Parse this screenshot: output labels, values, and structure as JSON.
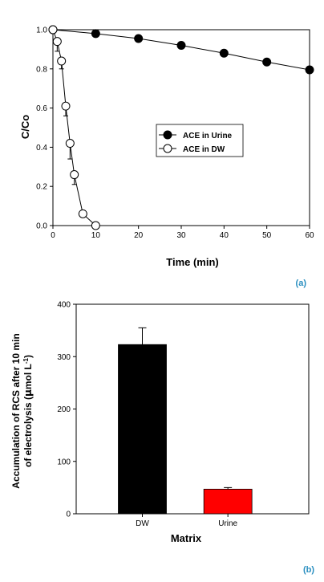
{
  "chart_data": [
    {
      "type": "line",
      "panel_label": "(a)",
      "xlabel": "Time (min)",
      "ylabel": "C/Co",
      "xlim": [
        0,
        60
      ],
      "ylim": [
        0,
        1.0
      ],
      "x_ticks": [
        "0",
        "10",
        "20",
        "30",
        "40",
        "50",
        "60"
      ],
      "y_ticks": [
        "0.0",
        "0.2",
        "0.4",
        "0.6",
        "0.8",
        "1.0"
      ],
      "grid": false,
      "legend_position": "center-right",
      "series": [
        {
          "name": "ACE in Urine",
          "marker": "filled-circle",
          "color": "#000000",
          "x": [
            0,
            10,
            20,
            30,
            40,
            50,
            60
          ],
          "y": [
            1.0,
            0.98,
            0.955,
            0.92,
            0.88,
            0.835,
            0.795
          ]
        },
        {
          "name": "ACE in DW",
          "marker": "open-circle",
          "color": "#000000",
          "x": [
            0,
            1,
            2,
            3,
            4,
            5,
            7,
            10
          ],
          "y": [
            1.0,
            0.94,
            0.84,
            0.61,
            0.42,
            0.26,
            0.06,
            0.0
          ],
          "error": [
            0.0,
            0.05,
            0.04,
            0.05,
            0.08,
            0.05,
            0.0,
            0.0
          ]
        }
      ]
    },
    {
      "type": "bar",
      "panel_label": "(b)",
      "xlabel": "Matrix",
      "ylabel_line1": "Accumulation of RCS after 10 min",
      "ylabel_line2": "of electrolysis (",
      "ylabel_mu": "μ",
      "ylabel_line2_rest": "mol L",
      "ylabel_sup": "-1",
      "ylabel_close": ")",
      "categories": [
        "DW",
        "Urine"
      ],
      "values": [
        323,
        47
      ],
      "errors": [
        32,
        3
      ],
      "colors": [
        "#000000",
        "#ff0000"
      ],
      "ylim": [
        0,
        400
      ],
      "y_ticks": [
        "0",
        "100",
        "200",
        "300",
        "400"
      ],
      "grid": false
    }
  ]
}
